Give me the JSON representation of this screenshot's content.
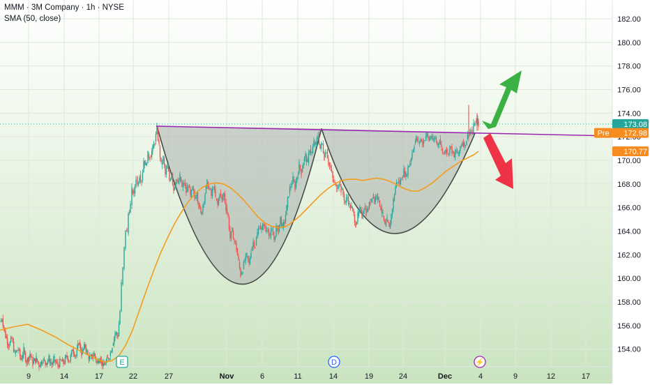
{
  "legend": {
    "title": "MMM · 3M Company · 1h · NYSE",
    "indicator": "SMA (50, close)"
  },
  "colors": {
    "up": "#26a69a",
    "down": "#ef5350",
    "sma": "#f59b1c",
    "neckline": "#9c27b0",
    "cup_fill": "#a9b0ad",
    "green_arrow": "#3bb043",
    "red_arrow": "#ef3347",
    "last_price": "#26a69a",
    "pre_market": "#f68c1f",
    "sma_badge": "#f68c1f",
    "event_e": "#26a69a",
    "event_d": "#2962ff",
    "event_split": "#9c27b0"
  },
  "chart_data": {
    "type": "candlestick",
    "title": "MMM · 3M Company · 1h · NYSE",
    "indicator": "SMA (50, close)",
    "ylim": [
      152.5,
      183.6
    ],
    "y_ticks": [
      "182.00",
      "180.00",
      "178.00",
      "176.00",
      "174.00",
      "172.00",
      "170.00",
      "168.00",
      "166.00",
      "164.00",
      "162.00",
      "160.00",
      "158.00",
      "156.00",
      "154.00"
    ],
    "x_ticks": [
      "9",
      "14",
      "17",
      "22",
      "27",
      "Nov",
      "6",
      "11",
      "14",
      "19",
      "24",
      "Dec",
      "4",
      "9",
      "12",
      "17"
    ],
    "bold_x_ticks": [
      "Nov",
      "Dec"
    ],
    "price_path": [
      [
        0,
        156.3
      ],
      [
        3,
        156.6
      ],
      [
        8,
        155.1
      ],
      [
        13,
        154.3
      ],
      [
        17,
        154.9
      ],
      [
        21,
        153.6
      ],
      [
        26,
        154.0
      ],
      [
        30,
        153.1
      ],
      [
        34,
        153.9
      ],
      [
        38,
        152.9
      ],
      [
        43,
        153.6
      ],
      [
        47,
        152.8
      ],
      [
        52,
        153.2
      ],
      [
        56,
        152.6
      ],
      [
        61,
        153.1
      ],
      [
        65,
        152.8
      ],
      [
        70,
        153.2
      ],
      [
        74,
        152.7
      ],
      [
        78,
        153.1
      ],
      [
        83,
        152.6
      ],
      [
        87,
        153.0
      ],
      [
        91,
        152.8
      ],
      [
        96,
        153.4
      ],
      [
        100,
        153.0
      ],
      [
        104,
        154.0
      ],
      [
        109,
        153.4
      ],
      [
        113,
        154.6
      ],
      [
        117,
        153.6
      ],
      [
        122,
        154.3
      ],
      [
        126,
        153.4
      ],
      [
        130,
        153.2
      ],
      [
        135,
        153.6
      ],
      [
        139,
        152.8
      ],
      [
        143,
        153.3
      ],
      [
        148,
        152.6
      ],
      [
        152,
        152.9
      ],
      [
        157,
        153.4
      ],
      [
        161,
        154.3
      ],
      [
        165,
        155.4
      ],
      [
        169,
        155.1
      ],
      [
        172,
        157.2
      ],
      [
        174,
        159.5
      ],
      [
        176,
        160.8
      ],
      [
        178,
        162.5
      ],
      [
        180,
        164.2
      ],
      [
        182,
        163.8
      ],
      [
        184,
        165.5
      ],
      [
        187,
        166.2
      ],
      [
        189,
        167.5
      ],
      [
        192,
        167.2
      ],
      [
        195,
        168.6
      ],
      [
        197,
        167.9
      ],
      [
        200,
        168.8
      ],
      [
        203,
        168.3
      ],
      [
        206,
        170.0
      ],
      [
        209,
        169.6
      ],
      [
        212,
        170.5
      ],
      [
        215,
        170.3
      ],
      [
        219,
        171.0
      ],
      [
        222,
        171.6
      ],
      [
        225,
        172.6
      ],
      [
        228,
        171.2
      ],
      [
        231,
        169.6
      ],
      [
        234,
        170.2
      ],
      [
        237,
        168.8
      ],
      [
        240,
        169.5
      ],
      [
        243,
        168.3
      ],
      [
        246,
        168.9
      ],
      [
        249,
        167.5
      ],
      [
        252,
        168.4
      ],
      [
        255,
        168.0
      ],
      [
        258,
        168.6
      ],
      [
        261,
        167.7
      ],
      [
        264,
        168.1
      ],
      [
        267,
        167.3
      ],
      [
        270,
        167.9
      ],
      [
        273,
        166.9
      ],
      [
        276,
        167.6
      ],
      [
        279,
        166.8
      ],
      [
        282,
        167.3
      ],
      [
        285,
        166.2
      ],
      [
        288,
        165.4
      ],
      [
        291,
        166.3
      ],
      [
        294,
        167.2
      ],
      [
        297,
        168.1
      ],
      [
        300,
        167.6
      ],
      [
        303,
        167.0
      ],
      [
        306,
        167.8
      ],
      [
        309,
        166.8
      ],
      [
        312,
        166.2
      ],
      [
        315,
        167.3
      ],
      [
        318,
        166.6
      ],
      [
        321,
        167.2
      ],
      [
        324,
        166.0
      ],
      [
        327,
        165.2
      ],
      [
        330,
        163.4
      ],
      [
        333,
        164.0
      ],
      [
        336,
        163.2
      ],
      [
        339,
        162.5
      ],
      [
        342,
        161.4
      ],
      [
        345,
        160.3
      ],
      [
        348,
        160.8
      ],
      [
        351,
        161.5
      ],
      [
        354,
        161.9
      ],
      [
        357,
        161.2
      ],
      [
        360,
        162.4
      ],
      [
        363,
        163.1
      ],
      [
        366,
        162.8
      ],
      [
        369,
        163.8
      ],
      [
        372,
        164.5
      ],
      [
        375,
        164.1
      ],
      [
        378,
        164.6
      ],
      [
        381,
        164.0
      ],
      [
        384,
        164.2
      ],
      [
        387,
        163.6
      ],
      [
        390,
        164.0
      ],
      [
        393,
        163.3
      ],
      [
        396,
        164.3
      ],
      [
        399,
        164.0
      ],
      [
        402,
        165.1
      ],
      [
        405,
        164.3
      ],
      [
        408,
        164.8
      ],
      [
        411,
        166.0
      ],
      [
        414,
        167.2
      ],
      [
        417,
        167.9
      ],
      [
        420,
        168.4
      ],
      [
        423,
        167.7
      ],
      [
        426,
        168.7
      ],
      [
        429,
        169.6
      ],
      [
        432,
        169.0
      ],
      [
        435,
        169.9
      ],
      [
        438,
        170.4
      ],
      [
        441,
        169.8
      ],
      [
        444,
        171.0
      ],
      [
        447,
        170.6
      ],
      [
        450,
        171.5
      ],
      [
        453,
        171.3
      ],
      [
        456,
        172.2
      ],
      [
        459,
        171.0
      ],
      [
        462,
        171.4
      ],
      [
        465,
        170.3
      ],
      [
        468,
        170.9
      ],
      [
        471,
        169.8
      ],
      [
        474,
        169.3
      ],
      [
        477,
        168.4
      ],
      [
        480,
        168.0
      ],
      [
        483,
        167.6
      ],
      [
        486,
        168.2
      ],
      [
        489,
        167.5
      ],
      [
        492,
        167.1
      ],
      [
        495,
        166.4
      ],
      [
        498,
        166.9
      ],
      [
        501,
        166.2
      ],
      [
        504,
        166.0
      ],
      [
        507,
        165.4
      ],
      [
        510,
        164.6
      ],
      [
        513,
        165.3
      ],
      [
        516,
        165.8
      ],
      [
        519,
        165.3
      ],
      [
        522,
        166.1
      ],
      [
        525,
        165.6
      ],
      [
        528,
        165.9
      ],
      [
        531,
        166.5
      ],
      [
        534,
        167.1
      ],
      [
        537,
        166.5
      ],
      [
        540,
        167.2
      ],
      [
        543,
        166.6
      ],
      [
        546,
        166.0
      ],
      [
        549,
        165.3
      ],
      [
        552,
        164.4
      ],
      [
        555,
        164.9
      ],
      [
        558,
        164.2
      ],
      [
        561,
        165.4
      ],
      [
        564,
        166.6
      ],
      [
        567,
        167.8
      ],
      [
        570,
        168.3
      ],
      [
        573,
        168.0
      ],
      [
        576,
        168.6
      ],
      [
        579,
        169.1
      ],
      [
        582,
        168.7
      ],
      [
        585,
        169.4
      ],
      [
        588,
        169.9
      ],
      [
        591,
        170.7
      ],
      [
        594,
        171.4
      ],
      [
        597,
        171.9
      ],
      [
        600,
        171.5
      ],
      [
        603,
        171.8
      ],
      [
        606,
        171.4
      ],
      [
        609,
        171.9
      ],
      [
        612,
        172.2
      ],
      [
        615,
        171.7
      ],
      [
        618,
        172.1
      ],
      [
        621,
        171.6
      ],
      [
        624,
        171.9
      ],
      [
        627,
        171.3
      ],
      [
        630,
        171.8
      ],
      [
        633,
        171.0
      ],
      [
        636,
        170.6
      ],
      [
        639,
        171.1
      ],
      [
        642,
        170.5
      ],
      [
        645,
        171.2
      ],
      [
        648,
        170.8
      ],
      [
        651,
        170.2
      ],
      [
        654,
        170.9
      ],
      [
        657,
        170.4
      ],
      [
        660,
        171.2
      ],
      [
        663,
        171.6
      ],
      [
        666,
        171.3
      ],
      [
        669,
        171.8
      ],
      [
        672,
        172.2
      ],
      [
        675,
        172.6
      ],
      [
        677,
        172.2
      ],
      [
        679,
        172.9
      ],
      [
        681,
        173.4
      ],
      [
        683,
        173.1
      ],
      [
        685,
        173.3
      ],
      [
        686,
        173.08
      ]
    ],
    "spikes": [
      {
        "x": 672,
        "high": 174.7,
        "low": 171.9
      },
      {
        "x": 684,
        "high": 174.0,
        "low": 172.5
      }
    ],
    "sma_50": [
      [
        0,
        155.6
      ],
      [
        20,
        155.9
      ],
      [
        40,
        156.1
      ],
      [
        60,
        155.6
      ],
      [
        80,
        155.0
      ],
      [
        100,
        154.3
      ],
      [
        120,
        153.7
      ],
      [
        140,
        153.1
      ],
      [
        150,
        152.9
      ],
      [
        160,
        153.0
      ],
      [
        170,
        153.4
      ],
      [
        180,
        154.3
      ],
      [
        190,
        155.6
      ],
      [
        200,
        157.3
      ],
      [
        210,
        159.0
      ],
      [
        220,
        160.6
      ],
      [
        230,
        162.1
      ],
      [
        240,
        163.4
      ],
      [
        250,
        164.6
      ],
      [
        260,
        165.6
      ],
      [
        270,
        166.5
      ],
      [
        280,
        167.2
      ],
      [
        290,
        167.7
      ],
      [
        300,
        168.0
      ],
      [
        310,
        168.1
      ],
      [
        320,
        168.0
      ],
      [
        330,
        167.7
      ],
      [
        340,
        167.2
      ],
      [
        350,
        166.6
      ],
      [
        360,
        165.9
      ],
      [
        370,
        165.2
      ],
      [
        380,
        164.7
      ],
      [
        390,
        164.4
      ],
      [
        400,
        164.3
      ],
      [
        410,
        164.4
      ],
      [
        420,
        164.8
      ],
      [
        430,
        165.3
      ],
      [
        440,
        165.9
      ],
      [
        450,
        166.5
      ],
      [
        460,
        167.1
      ],
      [
        470,
        167.6
      ],
      [
        480,
        168.0
      ],
      [
        490,
        168.3
      ],
      [
        500,
        168.4
      ],
      [
        510,
        168.4
      ],
      [
        520,
        168.3
      ],
      [
        530,
        168.4
      ],
      [
        540,
        168.5
      ],
      [
        550,
        168.4
      ],
      [
        560,
        168.2
      ],
      [
        570,
        167.9
      ],
      [
        580,
        167.6
      ],
      [
        590,
        167.4
      ],
      [
        600,
        167.4
      ],
      [
        610,
        167.7
      ],
      [
        620,
        168.1
      ],
      [
        630,
        168.6
      ],
      [
        640,
        169.1
      ],
      [
        650,
        169.5
      ],
      [
        660,
        169.9
      ],
      [
        670,
        170.2
      ],
      [
        680,
        170.5
      ],
      [
        686,
        170.77
      ]
    ],
    "neckline": {
      "start": [
        224,
        172.9
      ],
      "end": [
        856,
        172.1
      ]
    },
    "last_price": {
      "label": "173.08",
      "value": 173.08
    },
    "pre_market": {
      "tag": "Pre",
      "label": "172.98",
      "value": 172.98
    },
    "sma_last": {
      "label": "170.77",
      "value": 170.77
    },
    "events": [
      {
        "label": "E",
        "x": 175
      },
      {
        "label": "D",
        "x": 479
      },
      {
        "label": "⚡",
        "x": 688
      }
    ],
    "cups": [
      {
        "left": [
          225,
          172.9
        ],
        "bottom": [
          347,
          159.5
        ],
        "right": [
          461,
          172.7
        ]
      },
      {
        "left": [
          461,
          172.7
        ],
        "bottom": [
          565,
          163.8
        ],
        "right": [
          681,
          172.3
        ]
      }
    ],
    "arrows": [
      {
        "direction": "up",
        "color": "green_arrow"
      },
      {
        "direction": "down",
        "color": "red_arrow"
      }
    ]
  }
}
